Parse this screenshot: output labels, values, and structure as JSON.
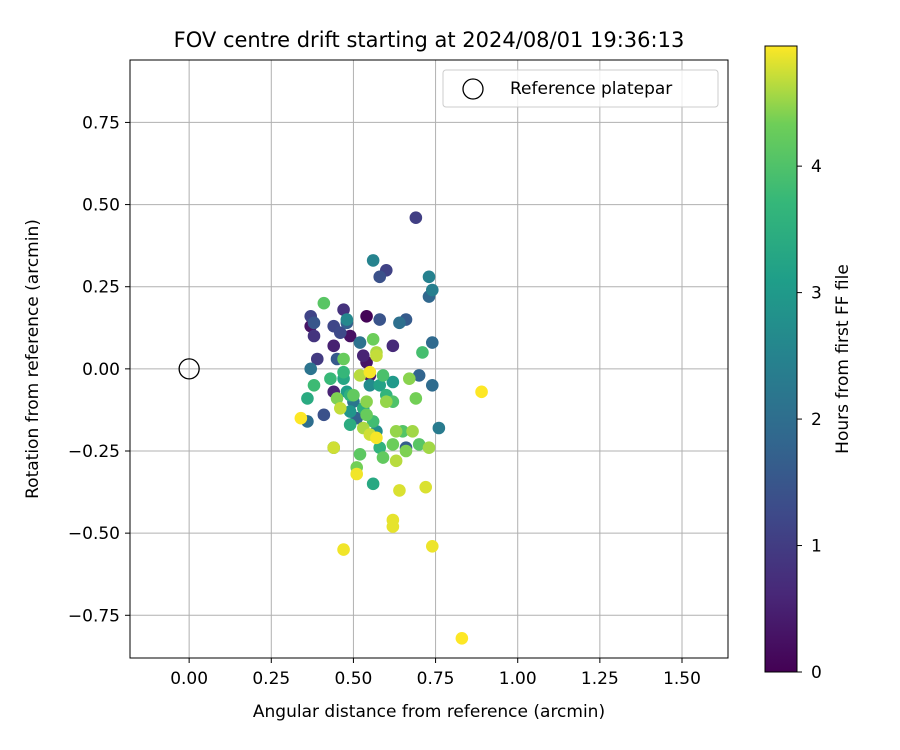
{
  "chart_data": {
    "type": "scatter",
    "title": "FOV centre drift starting at 2024/08/01 19:36:13",
    "xlabel": "Angular distance from reference (arcmin)",
    "ylabel": "Rotation from reference (arcmin)",
    "xlim": [
      -0.18,
      1.64
    ],
    "ylim": [
      -0.88,
      0.94
    ],
    "xticks": [
      "0.00",
      "0.25",
      "0.50",
      "0.75",
      "1.00",
      "1.25",
      "1.50"
    ],
    "xtick_values": [
      0,
      0.25,
      0.5,
      0.75,
      1.0,
      1.25,
      1.5
    ],
    "yticks": [
      "0.75",
      "0.50",
      "0.25",
      "0.00",
      "−0.25",
      "−0.50",
      "−0.75"
    ],
    "ytick_values": [
      0.75,
      0.5,
      0.25,
      0,
      -0.25,
      -0.5,
      -0.75
    ],
    "grid": true,
    "legend": {
      "placement": "top-right",
      "label": "Reference platepar"
    },
    "reference_point": {
      "x": 0.0,
      "y": 0.0
    },
    "colorbar": {
      "label": "Hours from first FF file",
      "colormap": "viridis",
      "range": [
        0,
        4.95
      ],
      "ticks": [
        "0",
        "1",
        "2",
        "3",
        "4"
      ],
      "tick_values": [
        0,
        1,
        2,
        3,
        4
      ]
    },
    "points": [
      {
        "x": 0.54,
        "y": 0.16,
        "h": 0.05
      },
      {
        "x": 0.49,
        "y": 0.1,
        "h": 0.25
      },
      {
        "x": 0.37,
        "y": 0.13,
        "h": 0.3
      },
      {
        "x": 0.54,
        "y": 0.02,
        "h": 0.3
      },
      {
        "x": 0.55,
        "y": -0.02,
        "h": 0.35
      },
      {
        "x": 0.44,
        "y": 0.07,
        "h": 0.5
      },
      {
        "x": 0.44,
        "y": -0.07,
        "h": 0.55
      },
      {
        "x": 0.53,
        "y": 0.04,
        "h": 0.55
      },
      {
        "x": 0.62,
        "y": 0.07,
        "h": 0.65
      },
      {
        "x": 0.47,
        "y": 0.18,
        "h": 0.8
      },
      {
        "x": 0.38,
        "y": 0.1,
        "h": 0.85
      },
      {
        "x": 0.39,
        "y": 0.03,
        "h": 0.95
      },
      {
        "x": 0.69,
        "y": 0.46,
        "h": 1.05
      },
      {
        "x": 0.6,
        "y": 0.3,
        "h": 1.1
      },
      {
        "x": 0.37,
        "y": 0.16,
        "h": 1.15
      },
      {
        "x": 0.44,
        "y": 0.13,
        "h": 1.2
      },
      {
        "x": 0.46,
        "y": 0.11,
        "h": 1.25
      },
      {
        "x": 0.58,
        "y": 0.28,
        "h": 1.4
      },
      {
        "x": 0.41,
        "y": -0.14,
        "h": 1.4
      },
      {
        "x": 0.58,
        "y": 0.15,
        "h": 1.45
      },
      {
        "x": 0.38,
        "y": 0.14,
        "h": 1.5
      },
      {
        "x": 0.45,
        "y": 0.03,
        "h": 1.55
      },
      {
        "x": 0.66,
        "y": 0.15,
        "h": 1.6
      },
      {
        "x": 0.66,
        "y": -0.24,
        "h": 1.65
      },
      {
        "x": 0.48,
        "y": 0.14,
        "h": 1.7
      },
      {
        "x": 0.51,
        "y": -0.15,
        "h": 1.75
      },
      {
        "x": 0.7,
        "y": -0.02,
        "h": 1.8
      },
      {
        "x": 0.73,
        "y": 0.22,
        "h": 1.85
      },
      {
        "x": 0.74,
        "y": 0.08,
        "h": 1.9
      },
      {
        "x": 0.74,
        "y": -0.05,
        "h": 1.95
      },
      {
        "x": 0.36,
        "y": -0.16,
        "h": 2.0
      },
      {
        "x": 0.64,
        "y": 0.14,
        "h": 2.05
      },
      {
        "x": 0.52,
        "y": 0.08,
        "h": 2.1
      },
      {
        "x": 0.37,
        "y": 0.0,
        "h": 2.15
      },
      {
        "x": 0.5,
        "y": -0.1,
        "h": 2.2
      },
      {
        "x": 0.76,
        "y": -0.18,
        "h": 2.3
      },
      {
        "x": 0.74,
        "y": 0.24,
        "h": 2.4
      },
      {
        "x": 0.73,
        "y": 0.28,
        "h": 2.45
      },
      {
        "x": 0.56,
        "y": 0.33,
        "h": 2.5
      },
      {
        "x": 0.48,
        "y": 0.15,
        "h": 2.6
      },
      {
        "x": 0.55,
        "y": -0.05,
        "h": 2.7
      },
      {
        "x": 0.57,
        "y": -0.19,
        "h": 2.75
      },
      {
        "x": 0.44,
        "y": -0.24,
        "h": 2.8
      },
      {
        "x": 0.49,
        "y": -0.13,
        "h": 2.9
      },
      {
        "x": 0.62,
        "y": -0.04,
        "h": 3.0
      },
      {
        "x": 0.48,
        "y": -0.07,
        "h": 3.1
      },
      {
        "x": 0.58,
        "y": -0.05,
        "h": 3.2
      },
      {
        "x": 0.47,
        "y": -0.03,
        "h": 3.3
      },
      {
        "x": 0.56,
        "y": -0.35,
        "h": 3.35
      },
      {
        "x": 0.36,
        "y": -0.09,
        "h": 3.4
      },
      {
        "x": 0.49,
        "y": -0.17,
        "h": 3.45
      },
      {
        "x": 0.53,
        "y": -0.12,
        "h": 3.5
      },
      {
        "x": 0.49,
        "y": -0.08,
        "h": 3.55
      },
      {
        "x": 0.58,
        "y": -0.24,
        "h": 3.6
      },
      {
        "x": 0.6,
        "y": -0.08,
        "h": 3.65
      },
      {
        "x": 0.47,
        "y": -0.01,
        "h": 3.7
      },
      {
        "x": 0.43,
        "y": -0.03,
        "h": 3.75
      },
      {
        "x": 0.38,
        "y": -0.05,
        "h": 3.8
      },
      {
        "x": 0.56,
        "y": -0.16,
        "h": 3.85
      },
      {
        "x": 0.71,
        "y": 0.05,
        "h": 3.9
      },
      {
        "x": 0.59,
        "y": -0.02,
        "h": 3.95
      },
      {
        "x": 0.62,
        "y": -0.1,
        "h": 4.0
      },
      {
        "x": 0.65,
        "y": -0.19,
        "h": 4.05
      },
      {
        "x": 0.7,
        "y": -0.23,
        "h": 4.1
      },
      {
        "x": 0.41,
        "y": 0.2,
        "h": 4.1
      },
      {
        "x": 0.52,
        "y": -0.26,
        "h": 4.15
      },
      {
        "x": 0.59,
        "y": -0.27,
        "h": 4.2
      },
      {
        "x": 0.5,
        "y": -0.08,
        "h": 4.2
      },
      {
        "x": 0.54,
        "y": -0.14,
        "h": 4.25
      },
      {
        "x": 0.47,
        "y": 0.03,
        "h": 4.25
      },
      {
        "x": 0.56,
        "y": 0.09,
        "h": 4.3
      },
      {
        "x": 0.62,
        "y": -0.23,
        "h": 4.3
      },
      {
        "x": 0.69,
        "y": -0.09,
        "h": 4.35
      },
      {
        "x": 0.51,
        "y": -0.3,
        "h": 4.35
      },
      {
        "x": 0.66,
        "y": -0.25,
        "h": 4.4
      },
      {
        "x": 0.45,
        "y": -0.09,
        "h": 4.4
      },
      {
        "x": 0.67,
        "y": -0.03,
        "h": 4.45
      },
      {
        "x": 0.54,
        "y": -0.1,
        "h": 4.45
      },
      {
        "x": 0.63,
        "y": -0.19,
        "h": 4.5
      },
      {
        "x": 0.6,
        "y": -0.1,
        "h": 4.5
      },
      {
        "x": 0.68,
        "y": -0.19,
        "h": 4.55
      },
      {
        "x": 0.73,
        "y": -0.24,
        "h": 4.55
      },
      {
        "x": 0.57,
        "y": 0.05,
        "h": 4.6
      },
      {
        "x": 0.53,
        "y": -0.18,
        "h": 4.6
      },
      {
        "x": 0.63,
        "y": -0.28,
        "h": 4.65
      },
      {
        "x": 0.52,
        "y": -0.02,
        "h": 4.65
      },
      {
        "x": 0.46,
        "y": -0.12,
        "h": 4.7
      },
      {
        "x": 0.57,
        "y": 0.04,
        "h": 4.7
      },
      {
        "x": 0.55,
        "y": -0.2,
        "h": 4.75
      },
      {
        "x": 0.44,
        "y": -0.24,
        "h": 4.75
      },
      {
        "x": 0.64,
        "y": -0.37,
        "h": 4.8
      },
      {
        "x": 0.72,
        "y": -0.36,
        "h": 4.8
      },
      {
        "x": 0.62,
        "y": -0.46,
        "h": 4.85
      },
      {
        "x": 0.62,
        "y": -0.48,
        "h": 4.85
      },
      {
        "x": 0.74,
        "y": -0.54,
        "h": 4.88
      },
      {
        "x": 0.47,
        "y": -0.55,
        "h": 4.9
      },
      {
        "x": 0.51,
        "y": -0.32,
        "h": 4.9
      },
      {
        "x": 0.57,
        "y": -0.21,
        "h": 4.92
      },
      {
        "x": 0.55,
        "y": -0.01,
        "h": 4.92
      },
      {
        "x": 0.34,
        "y": -0.15,
        "h": 4.95
      },
      {
        "x": 0.89,
        "y": -0.07,
        "h": 4.95
      },
      {
        "x": 0.83,
        "y": -0.82,
        "h": 4.95
      }
    ]
  }
}
